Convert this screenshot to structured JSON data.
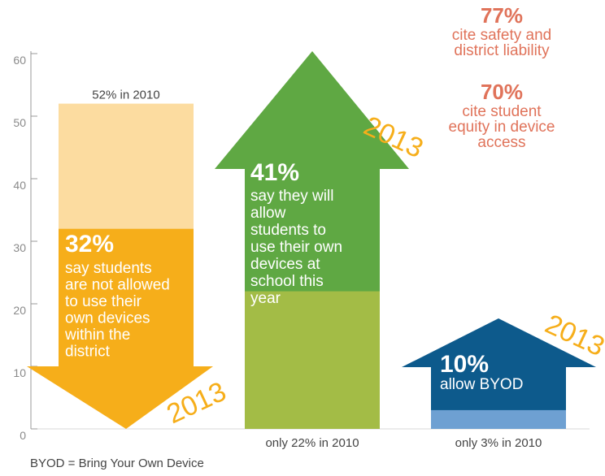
{
  "chart_data": {
    "type": "bar",
    "ylim": [
      0,
      60
    ],
    "yticks": [
      0,
      10,
      20,
      30,
      40,
      50,
      60
    ],
    "bars": [
      {
        "id": "not-allowed",
        "value_2013": 32,
        "value_2010": 52,
        "direction": "down",
        "pct_label": "32%",
        "desc_lines": [
          "say students",
          "are not allowed",
          "to use their",
          "own devices",
          "within the",
          "district"
        ],
        "baseline_label": "52% in 2010",
        "year_label": "2013",
        "color_2013": "#f6ae1a",
        "color_2010": "#fcdca0"
      },
      {
        "id": "will-allow",
        "value_2013": 41,
        "value_2010": 22,
        "direction": "up",
        "pct_label": "41%",
        "desc_lines": [
          "say they will",
          "allow",
          "students to",
          "use their own",
          "devices at",
          "school this",
          "year"
        ],
        "baseline_label": "only 22% in 2010",
        "year_label": "2013",
        "color_2013": "#5fa843",
        "color_2010": "#a3bc46"
      },
      {
        "id": "allow-byod",
        "value_2013": 10,
        "value_2010": 3,
        "direction": "up",
        "pct_label": "10%",
        "desc_lines": [
          "allow BYOD"
        ],
        "baseline_label": "only 3% in 2010",
        "year_label": "2013",
        "color_2013": "#0d5a8c",
        "color_2010": "#6ea0d2"
      }
    ]
  },
  "side_notes": [
    {
      "pct": "77%",
      "lines": [
        "cite safety and",
        "district liability"
      ]
    },
    {
      "pct": "70%",
      "lines": [
        "cite student",
        "equity in device",
        "access"
      ]
    }
  ],
  "colors": {
    "accent_red": "#e0735a",
    "axis": "#9a9a9a",
    "year_down": "#f6ae1a",
    "year_green": "#5fa843",
    "year_blue": "#0d5a8c"
  },
  "footnote": "BYOD = Bring Your Own Device"
}
